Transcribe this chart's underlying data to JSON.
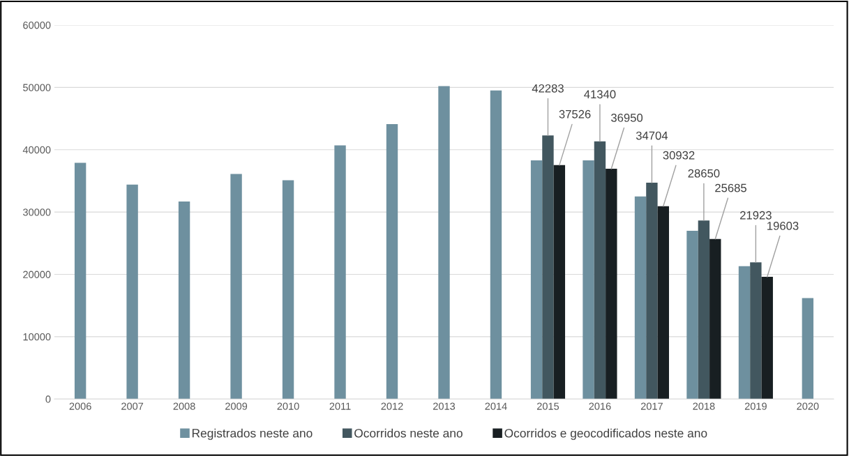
{
  "chart_data": {
    "type": "bar",
    "categories": [
      "2006",
      "2007",
      "2008",
      "2009",
      "2010",
      "2011",
      "2012",
      "2013",
      "2014",
      "2015",
      "2016",
      "2017",
      "2018",
      "2019",
      "2020"
    ],
    "series": [
      {
        "name": "Registrados neste ano",
        "color": "#6e909f",
        "values": [
          37900,
          34400,
          31700,
          36100,
          35100,
          40700,
          44100,
          50200,
          49500,
          38300,
          38300,
          32500,
          27000,
          21300,
          16200
        ]
      },
      {
        "name": "Ocorridos neste ano",
        "color": "#42575f",
        "values": [
          null,
          null,
          null,
          null,
          null,
          null,
          null,
          null,
          null,
          42283,
          41340,
          34704,
          28650,
          21923,
          null
        ],
        "value_labels": [
          null,
          null,
          null,
          null,
          null,
          null,
          null,
          null,
          null,
          "42283",
          "41340",
          "34704",
          "28650",
          "21923",
          null
        ]
      },
      {
        "name": "Ocorridos e geocodificados neste ano",
        "color": "#181f22",
        "values": [
          null,
          null,
          null,
          null,
          null,
          null,
          null,
          null,
          null,
          37526,
          36950,
          30932,
          25685,
          19603,
          null
        ],
        "value_labels": [
          null,
          null,
          null,
          null,
          null,
          null,
          null,
          null,
          null,
          "37526",
          "36950",
          "30932",
          "25685",
          "19603",
          null
        ]
      }
    ],
    "ylim": [
      0,
      60000
    ],
    "yticks": [
      0,
      10000,
      20000,
      30000,
      40000,
      50000,
      60000
    ],
    "grid": "y",
    "legend": "bottom"
  }
}
